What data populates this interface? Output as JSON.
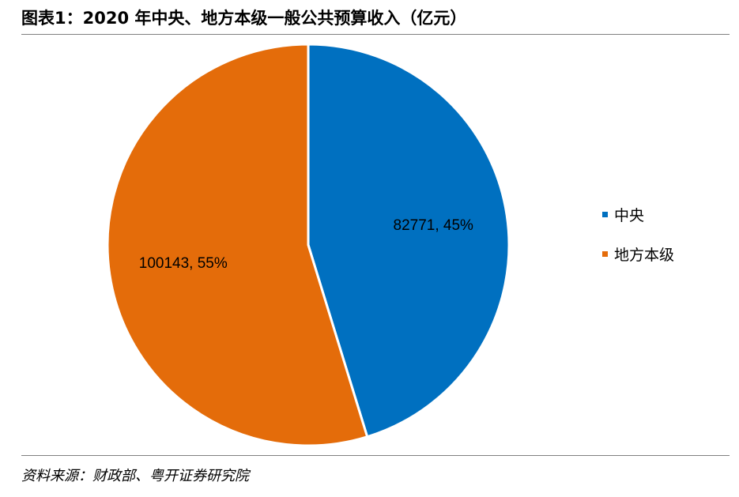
{
  "header": {
    "title": "图表1：2020 年中央、地方本级一般公共预算收入（亿元）"
  },
  "footer": {
    "source": "资料来源：财政部、粤开证券研究院"
  },
  "chart_data": {
    "type": "pie",
    "title": "",
    "legend_position": "right",
    "slices": [
      {
        "name": "中央",
        "value": 82771,
        "percent": 45,
        "label": "82771, 45%",
        "color": "#0070C0"
      },
      {
        "name": "地方本级",
        "value": 100143,
        "percent": 55,
        "label": "100143, 55%",
        "color": "#E46C0A"
      }
    ]
  }
}
